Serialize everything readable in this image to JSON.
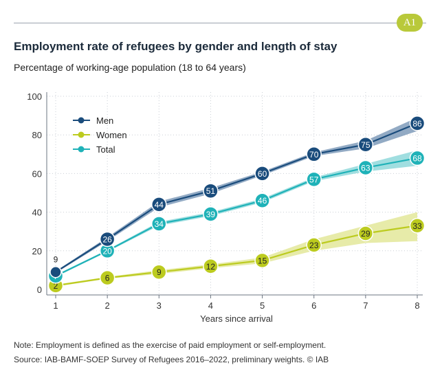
{
  "header": {
    "badge": "A1",
    "title": "Employment rate of refugees by gender and length of stay",
    "subtitle": "Percentage of working-age population (18 to 64 years)"
  },
  "footer": {
    "note": "Note: Employment is defined as the exercise of paid employment or self-employment.",
    "source": "Source: IAB-BAMF-SOEP Survey of Refugees 2016–2022, preliminary weights. © IAB"
  },
  "chart_data": {
    "type": "line",
    "title": "Employment rate of refugees by gender and length of stay",
    "xlabel": "Years since arrival",
    "ylabel": "",
    "x": [
      1,
      2,
      3,
      4,
      5,
      6,
      7,
      8
    ],
    "ylim": [
      0,
      100
    ],
    "yticks": [
      0,
      20,
      40,
      60,
      80,
      100
    ],
    "grid": true,
    "legend_position": "top-left",
    "series": [
      {
        "name": "Men",
        "color": "#1a4c7c",
        "band_color": "#7f9bba",
        "values": [
          9,
          26,
          44,
          51,
          60,
          70,
          75,
          86
        ],
        "lower": [
          8.5,
          25,
          42.5,
          49.5,
          59,
          69,
          73,
          82
        ],
        "upper": [
          9.5,
          27,
          45.5,
          52.5,
          61,
          71,
          77,
          89
        ]
      },
      {
        "name": "Women",
        "color": "#bccb1f",
        "band_color": "#e3e89a",
        "values": [
          2,
          6,
          9,
          12,
          15,
          23,
          29,
          33
        ],
        "lower": [
          1.5,
          5.5,
          8,
          11,
          13.5,
          20,
          24,
          25
        ],
        "upper": [
          2.5,
          6.5,
          10,
          13,
          16.5,
          26,
          33,
          40
        ]
      },
      {
        "name": "Total",
        "color": "#1fb2b8",
        "band_color": "#8fd8db",
        "values": [
          7,
          20,
          34,
          39,
          46,
          57,
          63,
          68
        ],
        "lower": [
          6.5,
          19.5,
          33,
          38,
          45,
          56,
          61,
          64
        ],
        "upper": [
          7.5,
          20.5,
          35,
          40,
          47,
          58,
          65,
          72
        ]
      }
    ]
  }
}
